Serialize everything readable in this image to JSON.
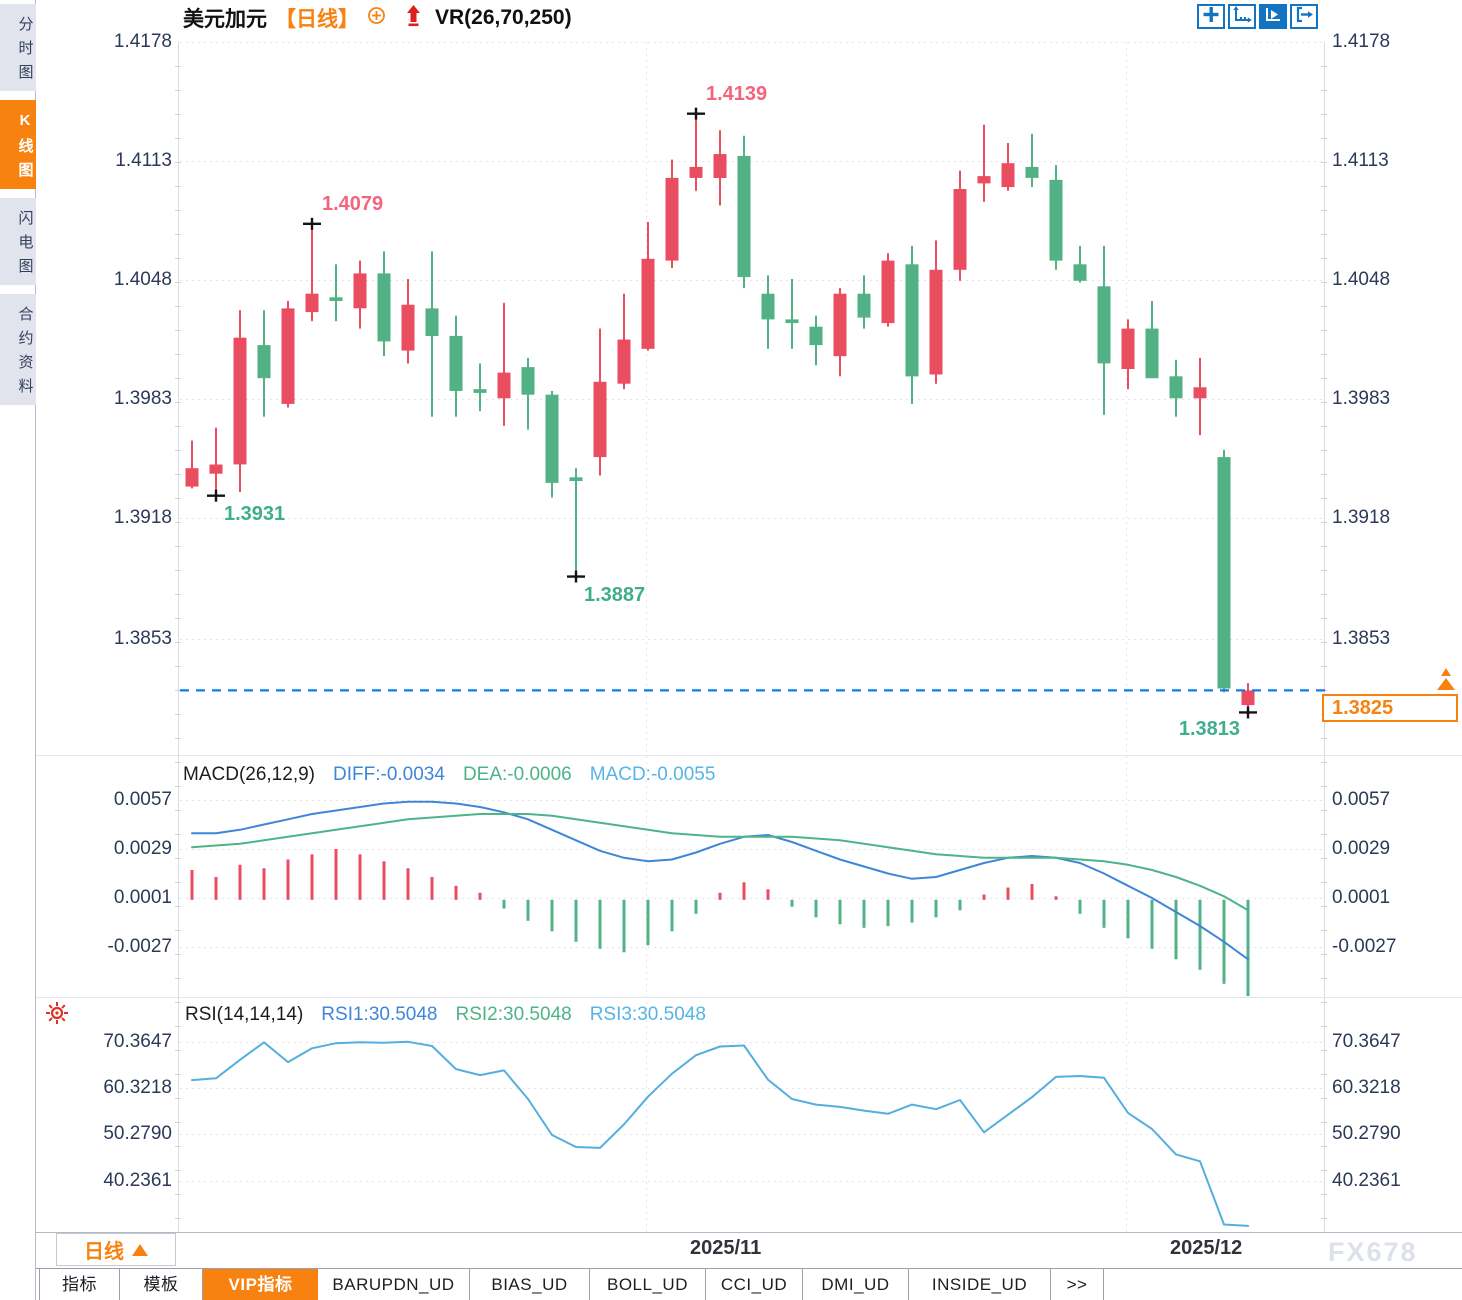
{
  "colors": {
    "up": "#e94d5f",
    "down": "#52b185",
    "diff": "#3f86d8",
    "dea": "#4db389",
    "macd_text": "#55b5e5",
    "rsi": "#55aede",
    "orange": "#f8820f",
    "blue": "#1474c4",
    "dash": "#1778e8",
    "annotation_red": "#f4647d",
    "annotation_green": "#3fae8c",
    "grid": "#e4e5ea",
    "axis_text": "#2c3a57"
  },
  "sidebar": {
    "items": [
      {
        "label": "分时图",
        "active": false
      },
      {
        "label": "K线图",
        "active": true
      },
      {
        "label": "闪电图",
        "active": false
      },
      {
        "label": "合约资料",
        "active": false
      }
    ]
  },
  "header": {
    "symbol": "美元加元",
    "period": "【日线】",
    "indicator": "VR(26,70,250)"
  },
  "toolbar": {
    "icons": [
      {
        "name": "pan-crosshair",
        "active": false
      },
      {
        "name": "axis-scale",
        "active": false
      },
      {
        "name": "axis-play",
        "active": true
      },
      {
        "name": "exit-right",
        "active": false
      }
    ]
  },
  "main_pane": {
    "y_axis_labels": [
      "1.4178",
      "1.4113",
      "1.4048",
      "1.3983",
      "1.3918",
      "1.3853"
    ],
    "current_price": "1.3825"
  },
  "macd_pane": {
    "title": "MACD(26,12,9)",
    "values": {
      "diff": "DIFF:-0.0034",
      "dea": "DEA:-0.0006",
      "macd": "MACD:-0.0055"
    },
    "y_axis_labels": [
      "0.0057",
      "0.0029",
      "0.0001",
      "-0.0027"
    ]
  },
  "rsi_pane": {
    "title": "RSI(14,14,14)",
    "values": {
      "rsi1": "RSI1:30.5048",
      "rsi2": "RSI2:30.5048",
      "rsi3": "RSI3:30.5048"
    },
    "y_axis_labels": [
      "70.3647",
      "60.3218",
      "50.2790",
      "40.2361"
    ]
  },
  "footer": {
    "period_button": "日线",
    "watermark": "FX678",
    "tabs": [
      {
        "label": "指标",
        "active": false
      },
      {
        "label": "模板",
        "active": false
      },
      {
        "label": "VIP指标",
        "active": true
      },
      {
        "label": "BARUPDN_UD",
        "active": false
      },
      {
        "label": "BIAS_UD",
        "active": false
      },
      {
        "label": "BOLL_UD",
        "active": false
      },
      {
        "label": "CCI_UD",
        "active": false
      },
      {
        "label": "DMI_UD",
        "active": false
      },
      {
        "label": "INSIDE_UD",
        "active": false
      },
      {
        "label": ">>",
        "active": false
      }
    ]
  },
  "chart_data": [
    {
      "type": "candlestick",
      "title": "美元加元 日线",
      "indicator": "VR(26,70,250)",
      "price_axis": [
        1.4178,
        1.4113,
        1.4048,
        1.3983,
        1.3918,
        1.3853
      ],
      "current_price": 1.3825,
      "ohlc_order": "open,high,low,close",
      "candles_ohlc": [
        [
          1.3936,
          1.3961,
          1.3935,
          1.3946
        ],
        [
          1.3943,
          1.3968,
          1.3931,
          1.3948
        ],
        [
          1.3948,
          1.4032,
          1.3933,
          1.4017
        ],
        [
          1.4013,
          1.4032,
          1.3974,
          1.3995
        ],
        [
          1.3981,
          1.4037,
          1.3979,
          1.4033
        ],
        [
          1.4031,
          1.4079,
          1.4026,
          1.4041
        ],
        [
          1.4039,
          1.4057,
          1.4026,
          1.4037
        ],
        [
          1.4033,
          1.4059,
          1.4022,
          1.4052
        ],
        [
          1.4052,
          1.4064,
          1.4007,
          1.4015
        ],
        [
          1.401,
          1.4049,
          1.4003,
          1.4035
        ],
        [
          1.4033,
          1.4064,
          1.3974,
          1.4018
        ],
        [
          1.4018,
          1.4029,
          1.3974,
          1.3988
        ],
        [
          1.3989,
          1.4003,
          1.3977,
          1.3987
        ],
        [
          1.3984,
          1.4036,
          1.3969,
          1.3998
        ],
        [
          1.4001,
          1.4006,
          1.3967,
          1.3986
        ],
        [
          1.3986,
          1.3988,
          1.393,
          1.3938
        ],
        [
          1.3941,
          1.3946,
          1.3887,
          1.3939
        ],
        [
          1.3952,
          1.4022,
          1.3942,
          1.3993
        ],
        [
          1.3992,
          1.4041,
          1.3989,
          1.4016
        ],
        [
          1.4011,
          1.408,
          1.401,
          1.406
        ],
        [
          1.4059,
          1.4114,
          1.4055,
          1.4104
        ],
        [
          1.4104,
          1.4139,
          1.4097,
          1.411
        ],
        [
          1.4104,
          1.413,
          1.4089,
          1.4117
        ],
        [
          1.4116,
          1.4127,
          1.4044,
          1.405
        ],
        [
          1.4041,
          1.4051,
          1.4011,
          1.4027
        ],
        [
          1.4027,
          1.4049,
          1.4011,
          1.4025
        ],
        [
          1.4023,
          1.4029,
          1.4002,
          1.4013
        ],
        [
          1.4007,
          1.4044,
          1.3996,
          1.4041
        ],
        [
          1.4041,
          1.4051,
          1.4022,
          1.4028
        ],
        [
          1.4025,
          1.4063,
          1.4023,
          1.4059
        ],
        [
          1.4057,
          1.4067,
          1.3981,
          1.3996
        ],
        [
          1.3997,
          1.407,
          1.3992,
          1.4054
        ],
        [
          1.4054,
          1.4108,
          1.4048,
          1.4098
        ],
        [
          1.4101,
          1.4133,
          1.4091,
          1.4105
        ],
        [
          1.4099,
          1.4123,
          1.4097,
          1.4112
        ],
        [
          1.411,
          1.4128,
          1.4099,
          1.4104
        ],
        [
          1.4103,
          1.4111,
          1.4054,
          1.4059
        ],
        [
          1.4057,
          1.4067,
          1.4047,
          1.4048
        ],
        [
          1.4045,
          1.4067,
          1.3975,
          1.4003
        ],
        [
          1.4,
          1.4027,
          1.3989,
          1.4022
        ],
        [
          1.4022,
          1.4037,
          1.3995,
          1.3995
        ],
        [
          1.3996,
          1.4005,
          1.3974,
          1.3984
        ],
        [
          1.3984,
          1.4006,
          1.3964,
          1.399
        ],
        [
          1.3952,
          1.3956,
          1.3824,
          1.3826
        ],
        [
          1.3817,
          1.3829,
          1.3813,
          1.3825
        ]
      ],
      "markers": [
        {
          "index": 5,
          "price": 1.4079,
          "pos": "high",
          "label": "1.4079",
          "side": "right",
          "color": "red"
        },
        {
          "index": 21,
          "price": 1.4139,
          "pos": "high",
          "label": "1.4139",
          "side": "right",
          "color": "red"
        },
        {
          "index": 1,
          "price": 1.3931,
          "pos": "low",
          "label": "1.3931",
          "side": "right",
          "color": "green"
        },
        {
          "index": 16,
          "price": 1.3887,
          "pos": "low",
          "label": "1.3887",
          "side": "right",
          "color": "green"
        },
        {
          "index": 44,
          "price": 1.3813,
          "pos": "low",
          "label": "1.3813",
          "side": "left",
          "color": "green"
        }
      ],
      "x_ticks": [
        {
          "label": "2025/11",
          "index": 19
        },
        {
          "label": "2025/12",
          "index": 39
        }
      ]
    },
    {
      "type": "macd",
      "title": "MACD(26,12,9)",
      "last_values": {
        "diff": -0.0034,
        "dea": -0.0006,
        "macd": -0.0055
      },
      "axis": [
        0.0057,
        0.0029,
        0.0001,
        -0.0027
      ],
      "series": {
        "diff": [
          0.0038,
          0.0038,
          0.004,
          0.0043,
          0.0046,
          0.0049,
          0.0051,
          0.0053,
          0.0055,
          0.0056,
          0.0056,
          0.0055,
          0.0053,
          0.005,
          0.0046,
          0.004,
          0.0034,
          0.0028,
          0.0024,
          0.0022,
          0.0023,
          0.0027,
          0.0032,
          0.0036,
          0.0037,
          0.0033,
          0.0028,
          0.0023,
          0.0019,
          0.0015,
          0.0012,
          0.0013,
          0.0017,
          0.0021,
          0.0024,
          0.0025,
          0.0024,
          0.0021,
          0.0015,
          0.0008,
          0.0001,
          -0.0007,
          -0.0015,
          -0.0024,
          -0.0034
        ],
        "dea": [
          0.003,
          0.0031,
          0.0032,
          0.0034,
          0.0036,
          0.0038,
          0.004,
          0.0042,
          0.0044,
          0.0046,
          0.0047,
          0.0048,
          0.0049,
          0.0049,
          0.0049,
          0.0048,
          0.0046,
          0.0044,
          0.0042,
          0.004,
          0.0038,
          0.0037,
          0.0036,
          0.0036,
          0.0036,
          0.0036,
          0.0035,
          0.0034,
          0.0032,
          0.003,
          0.0028,
          0.0026,
          0.0025,
          0.0024,
          0.0024,
          0.0024,
          0.0024,
          0.0023,
          0.0022,
          0.002,
          0.0017,
          0.0013,
          0.0008,
          0.0002,
          -0.0006
        ],
        "hist": [
          0.0017,
          0.0013,
          0.002,
          0.0018,
          0.0023,
          0.0026,
          0.0029,
          0.0026,
          0.0022,
          0.0018,
          0.0013,
          0.0008,
          0.0004,
          -0.0005,
          -0.0012,
          -0.0018,
          -0.0024,
          -0.0028,
          -0.003,
          -0.0026,
          -0.0018,
          -0.0008,
          0.0004,
          0.001,
          0.0006,
          -0.0004,
          -0.001,
          -0.0014,
          -0.0016,
          -0.0015,
          -0.0013,
          -0.001,
          -0.0006,
          0.0003,
          0.0007,
          0.0009,
          0.0002,
          -0.0008,
          -0.0016,
          -0.0022,
          -0.0028,
          -0.0034,
          -0.004,
          -0.0048,
          -0.0055
        ]
      }
    },
    {
      "type": "line",
      "title": "RSI(14,14,14)",
      "last_values": {
        "rsi1": 30.5048,
        "rsi2": 30.5048,
        "rsi3": 30.5048
      },
      "axis": [
        70.3647,
        60.3218,
        50.279,
        40.2361
      ],
      "values": [
        62.1,
        62.5,
        66.5,
        70.3,
        66.0,
        69.0,
        70.1,
        70.3,
        70.2,
        70.4,
        69.5,
        64.5,
        63.2,
        64.2,
        58.0,
        50.2,
        47.6,
        47.4,
        52.5,
        58.5,
        63.5,
        67.5,
        69.4,
        69.6,
        62.2,
        58.0,
        56.8,
        56.3,
        55.5,
        54.8,
        56.8,
        55.8,
        57.8,
        50.8,
        54.6,
        58.4,
        62.8,
        63.0,
        62.6,
        55.0,
        51.5,
        46.0,
        44.5,
        30.8,
        30.5
      ]
    }
  ]
}
